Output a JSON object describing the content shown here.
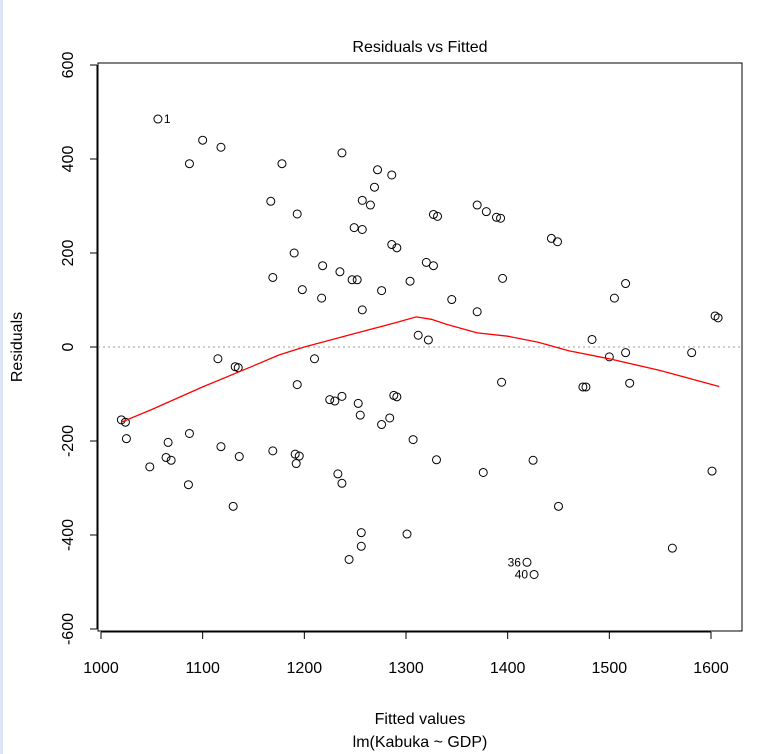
{
  "chart_data": {
    "type": "scatter",
    "title": "Residuals vs Fitted",
    "xlabel": "Fitted values",
    "subtitle": "lm(Kabuka ~ GDP)",
    "ylabel": "Residuals",
    "xlim": [
      1000,
      1600
    ],
    "ylim": [
      -600,
      600
    ],
    "xticks": [
      1000,
      1100,
      1200,
      1300,
      1400,
      1500,
      1600
    ],
    "yticks": [
      -600,
      -400,
      -200,
      0,
      200,
      400,
      600
    ],
    "xtick_labels": [
      "1000",
      "1100",
      "1200",
      "1300",
      "1400",
      "1500",
      "1600"
    ],
    "ytick_labels": [
      "-600",
      "-400",
      "-200",
      "0",
      "200",
      "400",
      "600"
    ],
    "reference_line": {
      "y": 0,
      "style": "dotted",
      "color": "#9e9e9e"
    },
    "smooth_color": "#ff0000",
    "point_color": "#000000",
    "points": [
      {
        "x": 1056,
        "y": 485,
        "label": "1"
      },
      {
        "x": 1100,
        "y": 440
      },
      {
        "x": 1118,
        "y": 425
      },
      {
        "x": 1087,
        "y": 390
      },
      {
        "x": 1178,
        "y": 390
      },
      {
        "x": 1167,
        "y": 310
      },
      {
        "x": 1193,
        "y": 283
      },
      {
        "x": 1237,
        "y": 413
      },
      {
        "x": 1272,
        "y": 377
      },
      {
        "x": 1286,
        "y": 366
      },
      {
        "x": 1269,
        "y": 340
      },
      {
        "x": 1265,
        "y": 302
      },
      {
        "x": 1257,
        "y": 312
      },
      {
        "x": 1249,
        "y": 254
      },
      {
        "x": 1257,
        "y": 250
      },
      {
        "x": 1286,
        "y": 218
      },
      {
        "x": 1291,
        "y": 211
      },
      {
        "x": 1190,
        "y": 200
      },
      {
        "x": 1218,
        "y": 173
      },
      {
        "x": 1169,
        "y": 148
      },
      {
        "x": 1235,
        "y": 160
      },
      {
        "x": 1247,
        "y": 143
      },
      {
        "x": 1252,
        "y": 143
      },
      {
        "x": 1198,
        "y": 122
      },
      {
        "x": 1276,
        "y": 120
      },
      {
        "x": 1217,
        "y": 104
      },
      {
        "x": 1257,
        "y": 79
      },
      {
        "x": 1327,
        "y": 282
      },
      {
        "x": 1331,
        "y": 278
      },
      {
        "x": 1370,
        "y": 302
      },
      {
        "x": 1379,
        "y": 288
      },
      {
        "x": 1389,
        "y": 276
      },
      {
        "x": 1393,
        "y": 274
      },
      {
        "x": 1304,
        "y": 140
      },
      {
        "x": 1320,
        "y": 180
      },
      {
        "x": 1327,
        "y": 173
      },
      {
        "x": 1345,
        "y": 101
      },
      {
        "x": 1370,
        "y": 75
      },
      {
        "x": 1395,
        "y": 146
      },
      {
        "x": 1312,
        "y": 25
      },
      {
        "x": 1322,
        "y": 15
      },
      {
        "x": 1443,
        "y": 231
      },
      {
        "x": 1449,
        "y": 224
      },
      {
        "x": 1516,
        "y": 135
      },
      {
        "x": 1505,
        "y": 104
      },
      {
        "x": 1483,
        "y": 16
      },
      {
        "x": 1604,
        "y": 66
      },
      {
        "x": 1607,
        "y": 62
      },
      {
        "x": 1581,
        "y": -12
      },
      {
        "x": 1516,
        "y": -12
      },
      {
        "x": 1500,
        "y": -21
      },
      {
        "x": 1520,
        "y": -77
      },
      {
        "x": 1474,
        "y": -85
      },
      {
        "x": 1477,
        "y": -85
      },
      {
        "x": 1394,
        "y": -75
      },
      {
        "x": 1020,
        "y": -155
      },
      {
        "x": 1024,
        "y": -160
      },
      {
        "x": 1025,
        "y": -195
      },
      {
        "x": 1048,
        "y": -255
      },
      {
        "x": 1066,
        "y": -203
      },
      {
        "x": 1064,
        "y": -235
      },
      {
        "x": 1069,
        "y": -241
      },
      {
        "x": 1087,
        "y": -184
      },
      {
        "x": 1086,
        "y": -293
      },
      {
        "x": 1115,
        "y": -25
      },
      {
        "x": 1132,
        "y": -42
      },
      {
        "x": 1135,
        "y": -44
      },
      {
        "x": 1118,
        "y": -212
      },
      {
        "x": 1136,
        "y": -233
      },
      {
        "x": 1130,
        "y": -339
      },
      {
        "x": 1169,
        "y": -221
      },
      {
        "x": 1191,
        "y": -228
      },
      {
        "x": 1195,
        "y": -232
      },
      {
        "x": 1192,
        "y": -248
      },
      {
        "x": 1193,
        "y": -80
      },
      {
        "x": 1210,
        "y": -25
      },
      {
        "x": 1225,
        "y": -112
      },
      {
        "x": 1230,
        "y": -115
      },
      {
        "x": 1237,
        "y": -105
      },
      {
        "x": 1253,
        "y": -120
      },
      {
        "x": 1255,
        "y": -145
      },
      {
        "x": 1233,
        "y": -270
      },
      {
        "x": 1237,
        "y": -290
      },
      {
        "x": 1288,
        "y": -103
      },
      {
        "x": 1291,
        "y": -106
      },
      {
        "x": 1284,
        "y": -151
      },
      {
        "x": 1276,
        "y": -165
      },
      {
        "x": 1307,
        "y": -197
      },
      {
        "x": 1330,
        "y": -240
      },
      {
        "x": 1376,
        "y": -267
      },
      {
        "x": 1425,
        "y": -241
      },
      {
        "x": 1450,
        "y": -339
      },
      {
        "x": 1601,
        "y": -264
      },
      {
        "x": 1256,
        "y": -395
      },
      {
        "x": 1256,
        "y": -424
      },
      {
        "x": 1244,
        "y": -452
      },
      {
        "x": 1301,
        "y": -398
      },
      {
        "x": 1562,
        "y": -428
      },
      {
        "x": 1419,
        "y": -458,
        "label": "36"
      },
      {
        "x": 1426,
        "y": -484,
        "label": "40"
      }
    ],
    "smooth_line": [
      {
        "x": 1020,
        "y": -160
      },
      {
        "x": 1050,
        "y": -133
      },
      {
        "x": 1100,
        "y": -85
      },
      {
        "x": 1150,
        "y": -40
      },
      {
        "x": 1175,
        "y": -17
      },
      {
        "x": 1200,
        "y": 0
      },
      {
        "x": 1250,
        "y": 29
      },
      {
        "x": 1290,
        "y": 52
      },
      {
        "x": 1310,
        "y": 64
      },
      {
        "x": 1325,
        "y": 59
      },
      {
        "x": 1340,
        "y": 48
      },
      {
        "x": 1370,
        "y": 30
      },
      {
        "x": 1400,
        "y": 23
      },
      {
        "x": 1430,
        "y": 10
      },
      {
        "x": 1460,
        "y": -8
      },
      {
        "x": 1500,
        "y": -25
      },
      {
        "x": 1550,
        "y": -50
      },
      {
        "x": 1608,
        "y": -84
      }
    ]
  }
}
